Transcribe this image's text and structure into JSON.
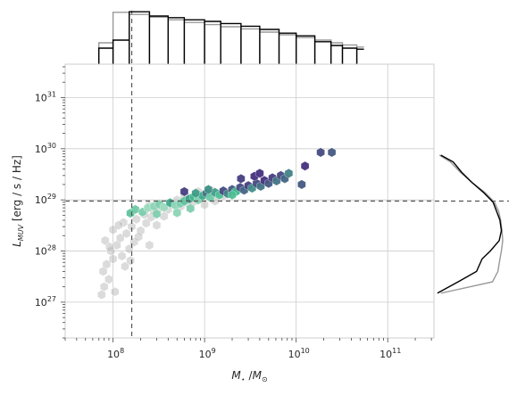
{
  "chart_data": {
    "type": "scatter",
    "subtype": "hexbin density with marginal histograms",
    "title": "",
    "xlabel": "$M_\\star / M_\\odot$",
    "ylabel": "$L_{MUV}$ [erg / s / Hz]",
    "x_scale": "log",
    "y_scale": "log",
    "xlim": [
      30000000.0,
      320000000000.0
    ],
    "ylim": [
      2e+26,
      4.5e+31
    ],
    "x_tick_labels": [
      {
        "value": 100000000.0,
        "base": "10",
        "exp": "8"
      },
      {
        "value": 1000000000.0,
        "base": "10",
        "exp": "9"
      },
      {
        "value": 10000000000.0,
        "base": "10",
        "exp": "10"
      },
      {
        "value": 100000000000.0,
        "base": "10",
        "exp": "11"
      }
    ],
    "y_tick_labels": [
      {
        "value": 1e+27,
        "base": "10",
        "exp": "27"
      },
      {
        "value": 1e+28,
        "base": "10",
        "exp": "28"
      },
      {
        "value": 1e+29,
        "base": "10",
        "exp": "29"
      },
      {
        "value": 1e+30,
        "base": "10",
        "exp": "30"
      },
      {
        "value": 1e+31,
        "base": "10",
        "exp": "31"
      }
    ],
    "grid": true,
    "reference_lines": {
      "vertical_x": 160000000.0,
      "horizontal_y": 9.5e+28,
      "style": "dashed",
      "color": "#555555"
    },
    "colors": {
      "background_hexbin": "#b0b0b0",
      "foreground_low": "#d9f0e0",
      "foreground_mid": "#3fb88c",
      "foreground_high": "#46307e",
      "marginal_foreground": "#000000",
      "marginal_background": "#999999",
      "grid": "#cccccc"
    },
    "series": [
      {
        "role": "background",
        "points": [
          [
            75000000.0,
            1.4e+27
          ],
          [
            80000000.0,
            2e+27
          ],
          [
            90000000.0,
            2.8e+27
          ],
          [
            78000000.0,
            4e+27
          ],
          [
            85000000.0,
            5.5e+27
          ],
          [
            100000000.0,
            7e+27
          ],
          [
            95000000.0,
            1e+28
          ],
          [
            110000000.0,
            1.3e+28
          ],
          [
            82000000.0,
            1.6e+28
          ],
          [
            120000000.0,
            1.8e+28
          ],
          [
            140000000.0,
            2.2e+28
          ],
          [
            100000000.0,
            2.6e+28
          ],
          [
            160000000.0,
            3e+28
          ],
          [
            130000000.0,
            3.6e+28
          ],
          [
            180000000.0,
            4.2e+28
          ],
          [
            150000000.0,
            1.1e+28
          ],
          [
            170000000.0,
            1.5e+28
          ],
          [
            200000000.0,
            2.5e+28
          ],
          [
            230000000.0,
            3.5e+28
          ],
          [
            260000000.0,
            4.6e+28
          ],
          [
            125000000.0,
            8e+27
          ],
          [
            135000000.0,
            5e+27
          ],
          [
            155000000.0,
            6.5e+27
          ],
          [
            190000000.0,
            1.9e+28
          ],
          [
            220000000.0,
            5.2e+28
          ],
          [
            280000000.0,
            6e+28
          ],
          [
            330000000.0,
            7e+28
          ],
          [
            250000000.0,
            7.8e+28
          ],
          [
            400000000.0,
            6.5e+28
          ],
          [
            300000000.0,
            3.2e+28
          ],
          [
            440000000.0,
            8.5e+28
          ],
          [
            500000000.0,
            1e+29
          ],
          [
            360000000.0,
            4.8e+28
          ],
          [
            600000000.0,
            1.15e+29
          ],
          [
            700000000.0,
            1.05e+29
          ],
          [
            550000000.0,
            7.5e+28
          ],
          [
            650000000.0,
            8.5e+28
          ],
          [
            800000000.0,
            1.2e+29
          ],
          [
            950000000.0,
            1.25e+29
          ],
          [
            1100000000.0,
            1.3e+29
          ],
          [
            750000000.0,
            9e+28
          ],
          [
            850000000.0,
            1.45e+29
          ],
          [
            1200000000.0,
            1.5e+29
          ],
          [
            250000000.0,
            1.3e+28
          ],
          [
            115000000.0,
            3.2e+28
          ],
          [
            1000000000.0,
            8e+28
          ],
          [
            1300000000.0,
            9.5e+28
          ],
          [
            1600000000.0,
            1.2e+29
          ],
          [
            92000000.0,
            1.2e+28
          ],
          [
            105000000.0,
            1.6e+27
          ]
        ]
      },
      {
        "role": "foreground",
        "points": [
          [
            155000000.0,
            5.5e+28,
            0.4
          ],
          [
            175000000.0,
            6.5e+28,
            0.35
          ],
          [
            210000000.0,
            5.8e+28,
            0.3
          ],
          [
            240000000.0,
            7e+28,
            0.2
          ],
          [
            280000000.0,
            7.5e+28,
            0.25
          ],
          [
            320000000.0,
            8.2e+28,
            0.3
          ],
          [
            360000000.0,
            7.2e+28,
            0.2
          ],
          [
            420000000.0,
            8.8e+28,
            0.55
          ],
          [
            480000000.0,
            7.8e+28,
            0.25
          ],
          [
            540000000.0,
            8.5e+28,
            0.3
          ],
          [
            600000000.0,
            9.5e+28,
            0.4
          ],
          [
            680000000.0,
            1.05e+29,
            0.6
          ],
          [
            760000000.0,
            1.15e+29,
            0.5
          ],
          [
            850000000.0,
            1e+29,
            0.3
          ],
          [
            950000000.0,
            1.2e+29,
            0.55
          ],
          [
            1050000000.0,
            1.35e+29,
            0.75
          ],
          [
            1150000000.0,
            1.12e+29,
            0.35
          ],
          [
            1300000000.0,
            1.4e+29,
            0.6
          ],
          [
            1450000000.0,
            1.25e+29,
            0.45
          ],
          [
            1600000000.0,
            1.5e+29,
            0.9
          ],
          [
            1800000000.0,
            1.32e+29,
            0.7
          ],
          [
            2000000000.0,
            1.6e+29,
            0.85
          ],
          [
            2200000000.0,
            1.45e+29,
            0.5
          ],
          [
            2450000000.0,
            1.75e+29,
            0.9
          ],
          [
            2700000000.0,
            1.55e+29,
            0.8
          ],
          [
            3000000000.0,
            1.9e+29,
            0.95
          ],
          [
            3300000000.0,
            1.7e+29,
            0.65
          ],
          [
            3700000000.0,
            2.1e+29,
            0.9
          ],
          [
            4100000000.0,
            1.85e+29,
            0.75
          ],
          [
            4500000000.0,
            2.4e+29,
            1.0
          ],
          [
            5000000000.0,
            2.1e+29,
            0.85
          ],
          [
            5500000000.0,
            2.7e+29,
            0.95
          ],
          [
            6100000000.0,
            2.35e+29,
            0.75
          ],
          [
            6800000000.0,
            3e+29,
            0.9
          ],
          [
            7500000000.0,
            2.6e+29,
            0.8
          ],
          [
            8300000000.0,
            3.3e+29,
            0.7
          ],
          [
            12500000000.0,
            4.6e+29,
            1.0
          ],
          [
            18500000000.0,
            8.5e+29,
            0.9
          ],
          [
            24500000000.0,
            8.5e+29,
            0.85
          ],
          [
            11500000000.0,
            2e+29,
            0.85
          ],
          [
            2000000000.0,
            1.25e+29,
            0.45
          ],
          [
            2500000000.0,
            2.6e+29,
            0.95
          ],
          [
            3500000000.0,
            2.9e+29,
            1.0
          ],
          [
            4000000000.0,
            3.3e+29,
            1.0
          ],
          [
            600000000.0,
            1.45e+29,
            0.95
          ],
          [
            800000000.0,
            1.35e+29,
            0.6
          ],
          [
            1100000000.0,
            1.6e+29,
            0.65
          ],
          [
            300000000.0,
            5.3e+28,
            0.3
          ],
          [
            500000000.0,
            5.6e+28,
            0.25
          ],
          [
            700000000.0,
            6.8e+28,
            0.3
          ]
        ]
      }
    ],
    "marginals": {
      "top": {
        "x": [
          70000000.0,
          100000000.0,
          150000000.0,
          250000000.0,
          400000000.0,
          600000000.0,
          1000000000.0,
          1500000000.0,
          2500000000.0,
          4000000000.0,
          6500000000.0,
          10000000000.0,
          16000000000.0,
          24000000000.0,
          32000000000.0,
          46000000000.0
        ],
        "foreground": [
          0.3,
          0.45,
          0.98,
          0.9,
          0.87,
          0.83,
          0.8,
          0.76,
          0.71,
          0.65,
          0.58,
          0.53,
          0.42,
          0.35,
          0.3,
          0.28
        ],
        "background": [
          0.4,
          0.97,
          0.93,
          0.88,
          0.83,
          0.78,
          0.74,
          0.7,
          0.66,
          0.6,
          0.55,
          0.5,
          0.45,
          0.4,
          0.36,
          0.32
        ]
      },
      "right": {
        "y": [
          1.5e+27,
          2.5e+27,
          4e+27,
          7e+27,
          1e+28,
          1.6e+28,
          2.5e+28,
          4e+28,
          6e+28,
          9e+28,
          1.4e+29,
          2.2e+29,
          3.5e+29,
          5.5e+29,
          7.5e+29
        ],
        "foreground": [
          0.05,
          0.35,
          0.62,
          0.7,
          0.82,
          0.95,
          0.98,
          0.96,
          0.91,
          0.86,
          0.72,
          0.55,
          0.4,
          0.28,
          0.1
        ],
        "background": [
          0.1,
          0.85,
          0.93,
          0.96,
          0.98,
          1.0,
          0.99,
          0.97,
          0.94,
          0.88,
          0.74,
          0.55,
          0.38,
          0.24,
          0.08
        ]
      }
    }
  }
}
